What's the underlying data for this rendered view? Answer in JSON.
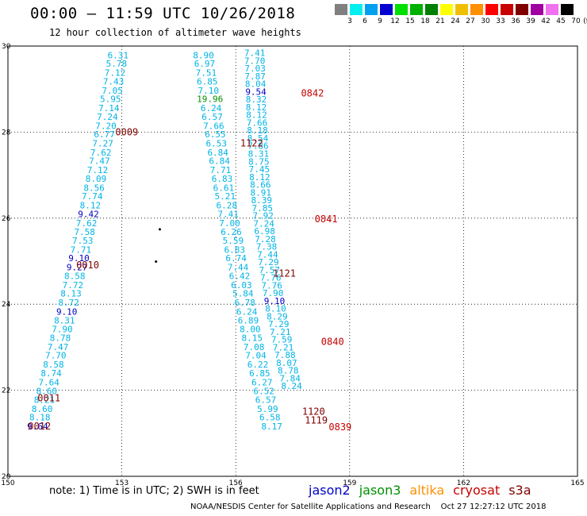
{
  "header": {
    "title": "00:00 – 11:59 UTC 10/26/2018",
    "subtitle": "12 hour collection of altimeter wave heights"
  },
  "colorbar": {
    "bins": [
      {
        "color": "#808080",
        "label": "3"
      },
      {
        "color": "#00f0f0",
        "label": "6"
      },
      {
        "color": "#00a0f0",
        "label": "9"
      },
      {
        "color": "#0000d0",
        "label": "12"
      },
      {
        "color": "#00e000",
        "label": "15"
      },
      {
        "color": "#00b000",
        "label": "18"
      },
      {
        "color": "#008000",
        "label": "21"
      },
      {
        "color": "#ffff00",
        "label": "24"
      },
      {
        "color": "#f0c000",
        "label": "27"
      },
      {
        "color": "#ff9000",
        "label": "30"
      },
      {
        "color": "#ff0000",
        "label": "33"
      },
      {
        "color": "#c80000",
        "label": "36"
      },
      {
        "color": "#800000",
        "label": "39"
      },
      {
        "color": "#a000a0",
        "label": "42"
      },
      {
        "color": "#f070f0",
        "label": "45"
      },
      {
        "color": "#000000",
        "label": "70"
      }
    ],
    "unit": "(ft)"
  },
  "note": "note: 1) Time is in UTC; 2) SWH is in feet",
  "satellites": [
    {
      "name": "jason2",
      "color": "#0000c8"
    },
    {
      "name": "jason3",
      "color": "#009000"
    },
    {
      "name": "altika",
      "color": "#ff9000"
    },
    {
      "name": "cryosat",
      "color": "#c80000"
    },
    {
      "name": "s3a",
      "color": "#800000"
    }
  ],
  "credit": "NOAA/NESDIS Center for Satellite Applications and Research    Oct 27 12:27:12 UTC 2018",
  "chart_data": {
    "type": "scatter",
    "xlim": [
      150,
      165
    ],
    "ylim": [
      20,
      30
    ],
    "xticks": [
      "150",
      "153",
      "156",
      "159",
      "162",
      "165"
    ],
    "yticks": [
      "20",
      "22",
      "24",
      "26",
      "28",
      "30"
    ],
    "grid": true,
    "colors": {
      "c6": "#00b4e6",
      "c9": "#0000c8",
      "c18": "#009000",
      "time_cryosat": "#c80000",
      "time_s3a": "#800000"
    },
    "tracks": [
      {
        "points": [
          {
            "x": 152.9,
            "y": 29.79,
            "v": "6.31",
            "c": "c6"
          },
          {
            "x": 152.86,
            "y": 29.59,
            "v": "5.78",
            "c": "c6"
          },
          {
            "x": 152.82,
            "y": 29.38,
            "v": "7.12",
            "c": "c6"
          },
          {
            "x": 152.78,
            "y": 29.18,
            "v": "7.43",
            "c": "c6"
          },
          {
            "x": 152.75,
            "y": 28.97,
            "v": "7.05",
            "c": "c6"
          },
          {
            "x": 152.7,
            "y": 28.77,
            "v": "5.95",
            "c": "c6"
          },
          {
            "x": 152.66,
            "y": 28.56,
            "v": "7.14",
            "c": "c6"
          },
          {
            "x": 152.62,
            "y": 28.36,
            "v": "7.24",
            "c": "c6"
          },
          {
            "x": 152.58,
            "y": 28.15,
            "v": "7.20",
            "c": "c6"
          },
          {
            "x": 152.54,
            "y": 27.95,
            "v": "6.77",
            "c": "c6"
          },
          {
            "x": 152.5,
            "y": 27.74,
            "v": "7.27",
            "c": "c6"
          },
          {
            "x": 152.45,
            "y": 27.53,
            "v": "7.62",
            "c": "c6"
          },
          {
            "x": 152.41,
            "y": 27.33,
            "v": "7.47",
            "c": "c6"
          },
          {
            "x": 152.36,
            "y": 27.12,
            "v": "7.12",
            "c": "c6"
          },
          {
            "x": 152.32,
            "y": 26.92,
            "v": "8.09",
            "c": "c6"
          },
          {
            "x": 152.27,
            "y": 26.71,
            "v": "8.56",
            "c": "c6"
          },
          {
            "x": 152.22,
            "y": 26.51,
            "v": "7.74",
            "c": "c6"
          },
          {
            "x": 152.17,
            "y": 26.3,
            "v": "8.12",
            "c": "c6"
          },
          {
            "x": 152.12,
            "y": 26.1,
            "v": "9.42",
            "c": "c9"
          },
          {
            "x": 152.07,
            "y": 25.89,
            "v": "7.62",
            "c": "c6"
          },
          {
            "x": 152.02,
            "y": 25.68,
            "v": "7.58",
            "c": "c6"
          },
          {
            "x": 151.97,
            "y": 25.48,
            "v": "7.53",
            "c": "c6"
          },
          {
            "x": 151.92,
            "y": 25.27,
            "v": "7.71",
            "c": "c6"
          },
          {
            "x": 151.87,
            "y": 25.07,
            "v": "9.10",
            "c": "c9"
          },
          {
            "x": 151.82,
            "y": 24.86,
            "v": "9.27",
            "c": "c9"
          },
          {
            "x": 151.76,
            "y": 24.66,
            "v": "8.58",
            "c": "c6"
          },
          {
            "x": 151.71,
            "y": 24.45,
            "v": "7.72",
            "c": "c6"
          },
          {
            "x": 151.66,
            "y": 24.25,
            "v": "8.13",
            "c": "c6"
          },
          {
            "x": 151.6,
            "y": 24.04,
            "v": "8.72",
            "c": "c6"
          },
          {
            "x": 151.55,
            "y": 23.83,
            "v": "9.10",
            "c": "c9"
          },
          {
            "x": 151.49,
            "y": 23.63,
            "v": "8.31",
            "c": "c6"
          },
          {
            "x": 151.43,
            "y": 23.42,
            "v": "7.90",
            "c": "c6"
          },
          {
            "x": 151.38,
            "y": 23.22,
            "v": "8.78",
            "c": "c6"
          },
          {
            "x": 151.32,
            "y": 23.01,
            "v": "7.47",
            "c": "c6"
          },
          {
            "x": 151.26,
            "y": 22.81,
            "v": "7.70",
            "c": "c6"
          },
          {
            "x": 151.2,
            "y": 22.6,
            "v": "8.58",
            "c": "c6"
          },
          {
            "x": 151.14,
            "y": 22.4,
            "v": "8.74",
            "c": "c6"
          },
          {
            "x": 151.08,
            "y": 22.19,
            "v": "7.64",
            "c": "c6"
          },
          {
            "x": 151.02,
            "y": 21.98,
            "v": "8.60",
            "c": "c6"
          },
          {
            "x": 150.96,
            "y": 21.78,
            "v": "8.21",
            "c": "c6"
          },
          {
            "x": 150.9,
            "y": 21.57,
            "v": "8.60",
            "c": "c6"
          },
          {
            "x": 150.84,
            "y": 21.37,
            "v": "8.18",
            "c": "c6"
          },
          {
            "x": 150.78,
            "y": 21.16,
            "v": "9.64",
            "c": "c9"
          }
        ]
      },
      {
        "points": [
          {
            "x": 155.15,
            "y": 29.79,
            "v": "8.90",
            "c": "c6"
          },
          {
            "x": 155.18,
            "y": 29.59,
            "v": "6.97",
            "c": "c6"
          },
          {
            "x": 155.22,
            "y": 29.38,
            "v": "7.51",
            "c": "c6"
          },
          {
            "x": 155.25,
            "y": 29.18,
            "v": "6.85",
            "c": "c6"
          },
          {
            "x": 155.28,
            "y": 28.97,
            "v": "7.10",
            "c": "c6"
          },
          {
            "x": 155.32,
            "y": 28.77,
            "v": "19.96",
            "c": "c18"
          },
          {
            "x": 155.35,
            "y": 28.56,
            "v": "6.24",
            "c": "c6"
          },
          {
            "x": 155.38,
            "y": 28.36,
            "v": "6.57",
            "c": "c6"
          },
          {
            "x": 155.42,
            "y": 28.15,
            "v": "7.66",
            "c": "c6"
          },
          {
            "x": 155.46,
            "y": 27.95,
            "v": "6.55",
            "c": "c6"
          },
          {
            "x": 155.49,
            "y": 27.74,
            "v": "6.53",
            "c": "c6"
          },
          {
            "x": 155.53,
            "y": 27.53,
            "v": "6.84",
            "c": "c6"
          },
          {
            "x": 155.57,
            "y": 27.33,
            "v": "6.84",
            "c": "c6"
          },
          {
            "x": 155.6,
            "y": 27.12,
            "v": "7.71",
            "c": "c6"
          },
          {
            "x": 155.64,
            "y": 26.92,
            "v": "6.83",
            "c": "c6"
          },
          {
            "x": 155.68,
            "y": 26.71,
            "v": "6.61",
            "c": "c6"
          },
          {
            "x": 155.72,
            "y": 26.51,
            "v": "5.21",
            "c": "c6"
          },
          {
            "x": 155.76,
            "y": 26.3,
            "v": "6.28",
            "c": "c6"
          },
          {
            "x": 155.8,
            "y": 26.1,
            "v": "7.41",
            "c": "c6"
          },
          {
            "x": 155.84,
            "y": 25.89,
            "v": "7.00",
            "c": "c6"
          },
          {
            "x": 155.88,
            "y": 25.68,
            "v": "6.26",
            "c": "c6"
          },
          {
            "x": 155.93,
            "y": 25.48,
            "v": "5.59",
            "c": "c6"
          },
          {
            "x": 155.97,
            "y": 25.27,
            "v": "6.83",
            "c": "c6"
          },
          {
            "x": 156.01,
            "y": 25.07,
            "v": "6.74",
            "c": "c6"
          },
          {
            "x": 156.06,
            "y": 24.86,
            "v": "7.44",
            "c": "c6"
          },
          {
            "x": 156.1,
            "y": 24.66,
            "v": "6.42",
            "c": "c6"
          },
          {
            "x": 156.15,
            "y": 24.45,
            "v": "6.03",
            "c": "c6"
          },
          {
            "x": 156.19,
            "y": 24.25,
            "v": "5.84",
            "c": "c6"
          },
          {
            "x": 156.24,
            "y": 24.04,
            "v": "6.78",
            "c": "c6"
          },
          {
            "x": 156.29,
            "y": 23.83,
            "v": "6.24",
            "c": "c6"
          },
          {
            "x": 156.33,
            "y": 23.63,
            "v": "6.89",
            "c": "c6"
          },
          {
            "x": 156.38,
            "y": 23.42,
            "v": "8.00",
            "c": "c6"
          },
          {
            "x": 156.43,
            "y": 23.22,
            "v": "8.15",
            "c": "c6"
          },
          {
            "x": 156.48,
            "y": 23.01,
            "v": "7.08",
            "c": "c6"
          },
          {
            "x": 156.53,
            "y": 22.81,
            "v": "7.04",
            "c": "c6"
          },
          {
            "x": 156.58,
            "y": 22.6,
            "v": "6.22",
            "c": "c6"
          },
          {
            "x": 156.63,
            "y": 22.4,
            "v": "6.85",
            "c": "c6"
          },
          {
            "x": 156.69,
            "y": 22.19,
            "v": "6.27",
            "c": "c6"
          },
          {
            "x": 156.74,
            "y": 21.98,
            "v": "6.52",
            "c": "c6"
          },
          {
            "x": 156.79,
            "y": 21.78,
            "v": "6.57",
            "c": "c6"
          },
          {
            "x": 156.84,
            "y": 21.57,
            "v": "5.99",
            "c": "c6"
          },
          {
            "x": 156.9,
            "y": 21.37,
            "v": "6.58",
            "c": "c6"
          },
          {
            "x": 156.95,
            "y": 21.16,
            "v": "8.17",
            "c": "c6"
          }
        ]
      },
      {
        "points": [
          {
            "x": 156.5,
            "y": 29.84,
            "v": "7.41",
            "c": "c6"
          },
          {
            "x": 156.5,
            "y": 29.66,
            "v": "7.70",
            "c": "c6"
          },
          {
            "x": 156.51,
            "y": 29.48,
            "v": "7.03",
            "c": "c6"
          },
          {
            "x": 156.51,
            "y": 29.3,
            "v": "7.87",
            "c": "c6"
          },
          {
            "x": 156.52,
            "y": 29.12,
            "v": "8.04",
            "c": "c6"
          },
          {
            "x": 156.53,
            "y": 28.94,
            "v": "9.54",
            "c": "c9"
          },
          {
            "x": 156.54,
            "y": 28.76,
            "v": "8.32",
            "c": "c6"
          },
          {
            "x": 156.54,
            "y": 28.58,
            "v": "8.12",
            "c": "c6"
          },
          {
            "x": 156.55,
            "y": 28.4,
            "v": "8.12",
            "c": "c6"
          },
          {
            "x": 156.56,
            "y": 28.22,
            "v": "7.66",
            "c": "c6"
          },
          {
            "x": 156.57,
            "y": 28.04,
            "v": "8.18",
            "c": "c6"
          },
          {
            "x": 156.58,
            "y": 27.86,
            "v": "8.54",
            "c": "c6"
          },
          {
            "x": 156.59,
            "y": 27.68,
            "v": "7.86",
            "c": "c6"
          },
          {
            "x": 156.6,
            "y": 27.5,
            "v": "8.31",
            "c": "c6"
          },
          {
            "x": 156.61,
            "y": 27.32,
            "v": "8.75",
            "c": "c6"
          },
          {
            "x": 156.62,
            "y": 27.14,
            "v": "7.45",
            "c": "c6"
          },
          {
            "x": 156.63,
            "y": 26.96,
            "v": "8.12",
            "c": "c6"
          },
          {
            "x": 156.65,
            "y": 26.78,
            "v": "8.66",
            "c": "c6"
          },
          {
            "x": 156.66,
            "y": 26.6,
            "v": "8.91",
            "c": "c6"
          },
          {
            "x": 156.68,
            "y": 26.42,
            "v": "8.39",
            "c": "c6"
          },
          {
            "x": 156.7,
            "y": 26.24,
            "v": "7.85",
            "c": "c6"
          },
          {
            "x": 156.72,
            "y": 26.06,
            "v": "7.92",
            "c": "c6"
          },
          {
            "x": 156.74,
            "y": 25.88,
            "v": "7.24",
            "c": "c6"
          },
          {
            "x": 156.76,
            "y": 25.7,
            "v": "6.98",
            "c": "c6"
          },
          {
            "x": 156.78,
            "y": 25.52,
            "v": "7.28",
            "c": "c6"
          },
          {
            "x": 156.81,
            "y": 25.34,
            "v": "7.38",
            "c": "c6"
          },
          {
            "x": 156.84,
            "y": 25.16,
            "v": "7.44",
            "c": "c6"
          },
          {
            "x": 156.86,
            "y": 24.98,
            "v": "7.29",
            "c": "c6"
          },
          {
            "x": 156.89,
            "y": 24.8,
            "v": "7.57",
            "c": "c6"
          },
          {
            "x": 156.92,
            "y": 24.62,
            "v": "7.76",
            "c": "c6"
          },
          {
            "x": 156.95,
            "y": 24.44,
            "v": "7.76",
            "c": "c6"
          },
          {
            "x": 156.98,
            "y": 24.26,
            "v": "7.90",
            "c": "c6"
          },
          {
            "x": 157.02,
            "y": 24.08,
            "v": "9.10",
            "c": "c9"
          },
          {
            "x": 157.05,
            "y": 23.9,
            "v": "8.10",
            "c": "c6"
          },
          {
            "x": 157.09,
            "y": 23.72,
            "v": "8.29",
            "c": "c6"
          },
          {
            "x": 157.13,
            "y": 23.54,
            "v": "7.29",
            "c": "c6"
          },
          {
            "x": 157.17,
            "y": 23.36,
            "v": "7.21",
            "c": "c6"
          },
          {
            "x": 157.21,
            "y": 23.18,
            "v": "7.59",
            "c": "c6"
          },
          {
            "x": 157.25,
            "y": 23.0,
            "v": "7.21",
            "c": "c6"
          },
          {
            "x": 157.3,
            "y": 22.82,
            "v": "7.88",
            "c": "c6"
          },
          {
            "x": 157.34,
            "y": 22.64,
            "v": "8.07",
            "c": "c6"
          },
          {
            "x": 157.38,
            "y": 22.46,
            "v": "8.78",
            "c": "c6"
          },
          {
            "x": 157.43,
            "y": 22.28,
            "v": "7.84",
            "c": "c6"
          },
          {
            "x": 157.47,
            "y": 22.1,
            "v": "8.24",
            "c": "c6"
          }
        ]
      }
    ],
    "time_labels": [
      {
        "x": 153.13,
        "y": 28.0,
        "v": "0009",
        "c": "time_s3a"
      },
      {
        "x": 152.1,
        "y": 24.91,
        "v": "0010",
        "c": "time_s3a"
      },
      {
        "x": 151.08,
        "y": 21.82,
        "v": "0011",
        "c": "time_s3a"
      },
      {
        "x": 150.83,
        "y": 21.16,
        "v": "0012",
        "c": "time_s3a"
      },
      {
        "x": 156.42,
        "y": 27.74,
        "v": "1122",
        "c": "time_s3a"
      },
      {
        "x": 157.28,
        "y": 24.71,
        "v": "1121",
        "c": "time_s3a"
      },
      {
        "x": 158.05,
        "y": 21.5,
        "v": "1120",
        "c": "time_s3a"
      },
      {
        "x": 158.12,
        "y": 21.3,
        "v": "1119",
        "c": "time_s3a"
      },
      {
        "x": 158.02,
        "y": 28.9,
        "v": "0842",
        "c": "time_cryosat"
      },
      {
        "x": 158.38,
        "y": 25.98,
        "v": "0841",
        "c": "time_cryosat"
      },
      {
        "x": 158.55,
        "y": 23.13,
        "v": "0840",
        "c": "time_cryosat"
      },
      {
        "x": 158.75,
        "y": 21.14,
        "v": "0839",
        "c": "time_cryosat"
      }
    ],
    "dots": [
      {
        "x": 154.0,
        "y": 25.74
      },
      {
        "x": 153.9,
        "y": 24.99
      }
    ]
  }
}
